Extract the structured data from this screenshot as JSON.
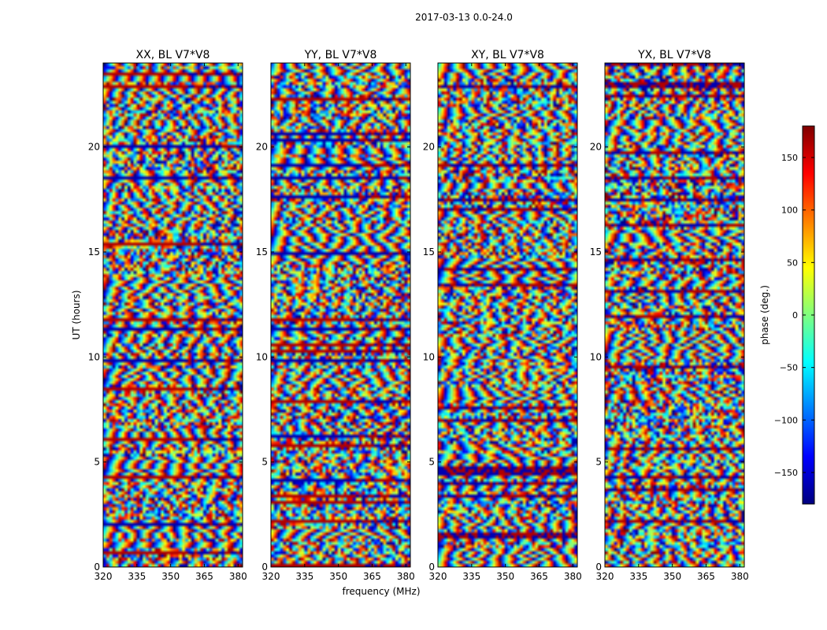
{
  "chart_data": {
    "type": "heatmap",
    "suptitle": "2017-03-13 0.0-24.0",
    "xlabel": "frequency (MHz)",
    "ylabel": "UT (hours)",
    "xlim": [
      320,
      382
    ],
    "ylim": [
      0,
      24
    ],
    "xticks": [
      320,
      335,
      350,
      365,
      380
    ],
    "yticks": [
      0,
      5,
      10,
      15,
      20
    ],
    "panels": [
      {
        "title": "XX, BL V7*V8"
      },
      {
        "title": "YY, BL V7*V8"
      },
      {
        "title": "XY, BL V7*V8"
      },
      {
        "title": "YX, BL V7*V8"
      }
    ],
    "colorbar": {
      "label": "phase (deg.)",
      "range": [
        -180,
        180
      ],
      "ticks": [
        150,
        100,
        50,
        0,
        -50,
        -100,
        -150
      ],
      "tick_labels": [
        "150",
        "100",
        "50",
        "0",
        "−50",
        "−100",
        "−150"
      ],
      "colormap": [
        "#00007f",
        "#0000ff",
        "#007fff",
        "#00ffff",
        "#7fff7f",
        "#ffff00",
        "#ff7f00",
        "#ff0000",
        "#7f0000"
      ]
    }
  }
}
